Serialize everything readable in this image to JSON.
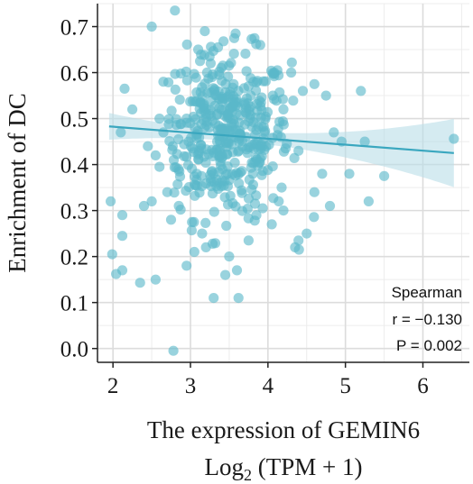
{
  "chart_data": {
    "type": "scatter",
    "xlabel_line1": "The expression of GEMIN6",
    "xlabel_line2_main": "Log",
    "xlabel_line2_sub": "2",
    "xlabel_line2_rest": " (TPM + 1)",
    "ylabel": "Enrichment of DC",
    "xlim": [
      1.8,
      6.6
    ],
    "ylim": [
      -0.03,
      0.75
    ],
    "x_ticks": [
      "2",
      "3",
      "4",
      "5",
      "6"
    ],
    "y_ticks": [
      "0.0",
      "0.1",
      "0.2",
      "0.3",
      "0.4",
      "0.5",
      "0.6",
      "0.7"
    ],
    "grid": true,
    "colors": {
      "points": "#5bb8c9",
      "line": "#3aa7bf",
      "band": "#b9dde8"
    },
    "regression": {
      "x0": 1.95,
      "y0": 0.483,
      "x1": 6.4,
      "y1": 0.425
    },
    "annotation": {
      "title": "Spearman",
      "r": "r = −0.130",
      "p": "P = 0.002"
    },
    "points": [
      [
        1.97,
        0.32
      ],
      [
        1.99,
        0.205
      ],
      [
        2.04,
        0.162
      ],
      [
        2.12,
        0.17
      ],
      [
        2.12,
        0.245
      ],
      [
        2.12,
        0.29
      ],
      [
        2.15,
        0.565
      ],
      [
        2.1,
        0.47
      ],
      [
        2.25,
        0.52
      ],
      [
        2.35,
        0.143
      ],
      [
        2.45,
        0.44
      ],
      [
        2.5,
        0.32
      ],
      [
        2.55,
        0.15
      ],
      [
        2.6,
        0.5
      ],
      [
        2.6,
        0.395
      ],
      [
        2.65,
        0.58
      ],
      [
        2.7,
        0.34
      ],
      [
        2.75,
        0.28
      ],
      [
        2.78,
        -0.005
      ],
      [
        2.8,
        0.735
      ],
      [
        2.85,
        0.31
      ],
      [
        2.95,
        0.18
      ],
      [
        3.05,
        0.21
      ],
      [
        3.15,
        0.25
      ],
      [
        3.2,
        0.22
      ],
      [
        3.3,
        0.11
      ],
      [
        3.45,
        0.16
      ],
      [
        3.6,
        0.17
      ],
      [
        3.62,
        0.11
      ],
      [
        3.5,
        0.2
      ],
      [
        3.75,
        0.235
      ],
      [
        3.85,
        0.29
      ],
      [
        4.05,
        0.27
      ],
      [
        4.2,
        0.3
      ],
      [
        4.35,
        0.22
      ],
      [
        4.4,
        0.215
      ],
      [
        4.5,
        0.25
      ],
      [
        4.6,
        0.34
      ],
      [
        4.7,
        0.38
      ],
      [
        4.8,
        0.31
      ],
      [
        4.95,
        0.45
      ],
      [
        5.05,
        0.38
      ],
      [
        5.2,
        0.56
      ],
      [
        5.3,
        0.32
      ],
      [
        5.25,
        0.45
      ],
      [
        5.5,
        0.375
      ],
      [
        6.4,
        0.456
      ],
      [
        4.85,
        0.47
      ],
      [
        4.6,
        0.575
      ],
      [
        4.75,
        0.55
      ],
      [
        2.4,
        0.31
      ],
      [
        2.55,
        0.42
      ],
      [
        2.65,
        0.47
      ],
      [
        4.3,
        0.6
      ],
      [
        4.45,
        0.56
      ],
      [
        2.5,
        0.7
      ],
      [
        2.95,
        0.5
      ],
      [
        3.9,
        0.66
      ],
      [
        3.1,
        0.65
      ],
      [
        4.2,
        0.52
      ]
    ]
  }
}
